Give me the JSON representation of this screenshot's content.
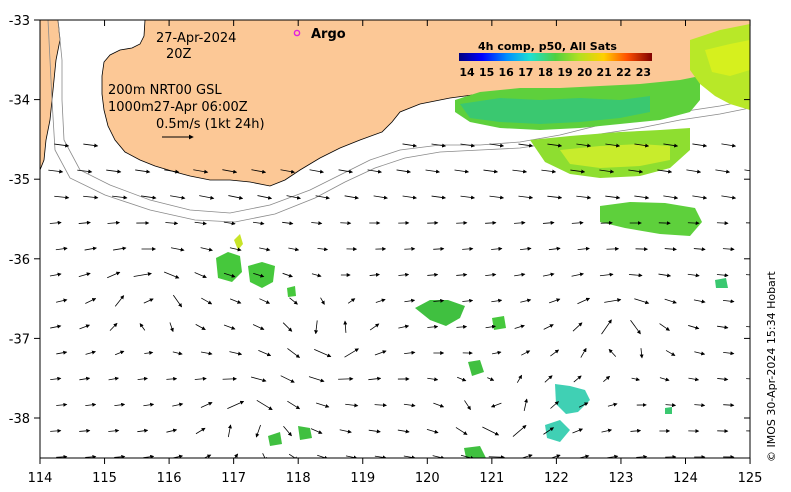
{
  "map": {
    "x_ticks": [
      "114",
      "115",
      "116",
      "117",
      "118",
      "119",
      "120",
      "121",
      "122",
      "123",
      "124",
      "125"
    ],
    "y_ticks": [
      "-33",
      "-34",
      "-35",
      "-36",
      "-37",
      "-38"
    ],
    "lon_range": [
      114,
      125
    ],
    "lat_range": [
      -38.5,
      -33
    ]
  },
  "info": {
    "date": "27-Apr-2024",
    "time": "20Z",
    "line1": "200m  NRT00 GSL",
    "line2": "1000m27-Apr 06:00Z",
    "scale": "0.5m/s (1kt 24h)"
  },
  "legend": {
    "argo_label": "Argo",
    "colorbar_title": "4h comp, p50, All Sats",
    "colorbar_ticks": [
      "14",
      "15",
      "16",
      "17",
      "18",
      "19",
      "20",
      "21",
      "22",
      "23"
    ]
  },
  "credit": "© IMOS 30-Apr-2024 15:34 Hobart",
  "colors": {
    "land": "#fcc896",
    "ocean": "#ffffff",
    "sst_warm": "#5ed03c",
    "sst_hot": "#c8ec2c",
    "sst_cool": "#3ac870",
    "sst_cyan": "#40d0b4",
    "argo": "#e020e0"
  }
}
